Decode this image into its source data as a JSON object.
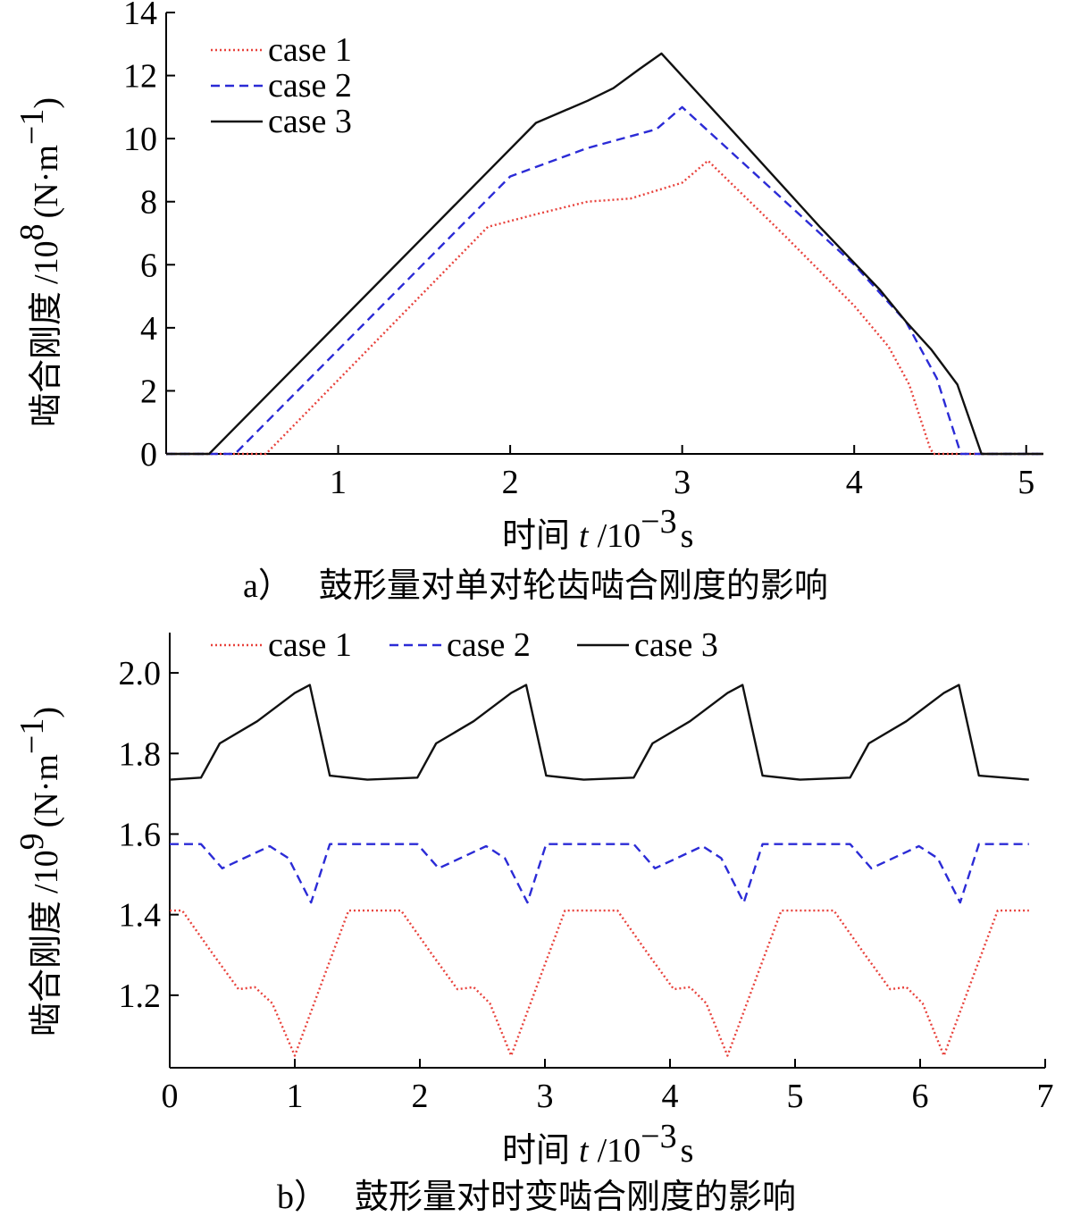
{
  "chart_data": [
    {
      "type": "line",
      "id": "a",
      "xlabel_prefix": "时间",
      "xlabel_var": "t",
      "xlabel_unit": "/10",
      "xlabel_exp": "−3",
      "xlabel_suffix": "s",
      "ylabel_prefix": "啮合刚度",
      "ylabel_unit": "/10",
      "ylabel_exp": "8",
      "ylabel_suffix": "(N·m",
      "ylabel_exp2": "−1",
      "ylabel_close": ")",
      "caption_prefix": "a）",
      "caption_text": "鼓形量对单对轮齿啮合刚度的影响",
      "xlim": [
        0.0,
        5.1
      ],
      "ylim": [
        0,
        14
      ],
      "xticks": [
        1,
        2,
        3,
        4,
        5
      ],
      "yticks": [
        0,
        2,
        4,
        6,
        8,
        10,
        12,
        14
      ],
      "legend_layout": "vertical-top-left",
      "series": [
        {
          "name": "case 1",
          "style": "dotted",
          "color": "#e8423c",
          "x": [
            0.0,
            0.58,
            1.87,
            2.15,
            2.45,
            2.7,
            3.0,
            3.15,
            3.6,
            4.0,
            4.2,
            4.32,
            4.44,
            4.46,
            5.1
          ],
          "y": [
            0,
            0,
            7.2,
            7.6,
            8.0,
            8.1,
            8.6,
            9.3,
            6.9,
            4.7,
            3.4,
            2.2,
            0.2,
            0,
            0
          ]
        },
        {
          "name": "case 2",
          "style": "dashed",
          "color": "#2b2bd6",
          "x": [
            0.0,
            0.4,
            2.0,
            2.45,
            2.85,
            3.0,
            3.6,
            4.0,
            4.3,
            4.48,
            4.62,
            5.1
          ],
          "y": [
            0,
            0,
            8.8,
            9.7,
            10.3,
            11.0,
            8.0,
            6.0,
            4.2,
            2.4,
            0,
            0
          ]
        },
        {
          "name": "case 3",
          "style": "solid",
          "color": "#111111",
          "x": [
            0.0,
            0.25,
            2.15,
            2.45,
            2.6,
            2.75,
            2.88,
            3.3,
            3.8,
            4.15,
            4.3,
            4.45,
            4.6,
            4.74,
            5.1
          ],
          "y": [
            0,
            0,
            10.5,
            11.2,
            11.6,
            12.2,
            12.7,
            10.2,
            7.2,
            5.2,
            4.2,
            3.3,
            2.2,
            0,
            0
          ]
        }
      ]
    },
    {
      "type": "line",
      "id": "b",
      "xlabel_prefix": "时间",
      "xlabel_var": "t",
      "xlabel_unit": "/10",
      "xlabel_exp": "−3",
      "xlabel_suffix": "s",
      "ylabel_prefix": "啮合刚度",
      "ylabel_unit": "/10",
      "ylabel_exp": "9",
      "ylabel_suffix": "(N·m",
      "ylabel_exp2": "−1",
      "ylabel_close": ")",
      "caption_prefix": "b）",
      "caption_text": "鼓形量对时变啮合刚度的影响",
      "xlim": [
        0,
        7
      ],
      "ylim": [
        1.02,
        2.1
      ],
      "xticks": [
        0,
        1,
        2,
        3,
        4,
        5,
        6,
        7
      ],
      "yticks": [
        1.2,
        1.4,
        1.6,
        1.8,
        2.0
      ],
      "ytick_labels": [
        "1.2",
        "1.4",
        "1.6",
        "1.8",
        "2.0"
      ],
      "legend_layout": "horizontal-top",
      "series": [
        {
          "name": "case 1",
          "style": "dotted",
          "color": "#e8423c",
          "x": [
            0,
            0.1,
            0.35,
            0.55,
            0.68,
            0.82,
            1.0,
            1.25,
            1.43,
            1.85,
            2.1,
            2.3,
            2.43,
            2.56,
            2.73,
            2.98,
            3.16,
            3.58,
            3.83,
            4.03,
            4.16,
            4.29,
            4.46,
            4.71,
            4.89,
            5.31,
            5.56,
            5.76,
            5.89,
            6.02,
            6.19,
            6.44,
            6.62,
            6.87
          ],
          "y": [
            1.41,
            1.41,
            1.3,
            1.215,
            1.22,
            1.18,
            1.05,
            1.26,
            1.41,
            1.41,
            1.3,
            1.215,
            1.22,
            1.18,
            1.05,
            1.26,
            1.41,
            1.41,
            1.3,
            1.215,
            1.22,
            1.18,
            1.05,
            1.26,
            1.41,
            1.41,
            1.3,
            1.215,
            1.22,
            1.18,
            1.05,
            1.26,
            1.41,
            1.41
          ]
        },
        {
          "name": "case 2",
          "style": "dashed",
          "color": "#2b2bd6",
          "x": [
            0,
            0.25,
            0.42,
            0.8,
            0.95,
            1.13,
            1.28,
            1.98,
            2.15,
            2.53,
            2.68,
            2.86,
            3.01,
            3.71,
            3.88,
            4.26,
            4.41,
            4.59,
            4.74,
            5.44,
            5.61,
            5.99,
            6.14,
            6.32,
            6.47,
            6.87
          ],
          "y": [
            1.575,
            1.575,
            1.515,
            1.57,
            1.54,
            1.43,
            1.575,
            1.575,
            1.515,
            1.57,
            1.54,
            1.43,
            1.575,
            1.575,
            1.515,
            1.57,
            1.54,
            1.43,
            1.575,
            1.575,
            1.515,
            1.57,
            1.54,
            1.43,
            1.575,
            1.575
          ]
        },
        {
          "name": "case 3",
          "style": "solid",
          "color": "#111111",
          "x": [
            0,
            0.25,
            0.4,
            0.7,
            1.0,
            1.12,
            1.28,
            1.58,
            1.98,
            2.13,
            2.43,
            2.73,
            2.85,
            3.01,
            3.31,
            3.71,
            3.86,
            4.16,
            4.46,
            4.58,
            4.74,
            5.04,
            5.44,
            5.59,
            5.89,
            6.19,
            6.31,
            6.47,
            6.87
          ],
          "y": [
            1.735,
            1.74,
            1.825,
            1.88,
            1.95,
            1.97,
            1.745,
            1.735,
            1.74,
            1.825,
            1.88,
            1.95,
            1.97,
            1.745,
            1.735,
            1.74,
            1.825,
            1.88,
            1.95,
            1.97,
            1.745,
            1.735,
            1.74,
            1.825,
            1.88,
            1.95,
            1.97,
            1.745,
            1.735
          ]
        }
      ]
    }
  ]
}
